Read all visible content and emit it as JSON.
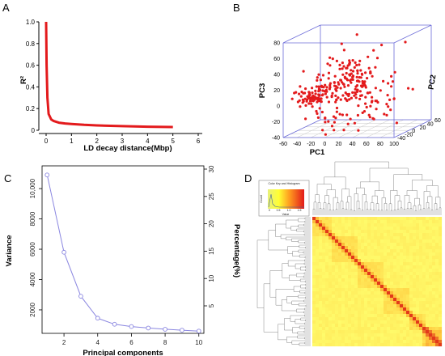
{
  "panel_letters": {
    "a": "A",
    "b": "B",
    "c": "C",
    "d": "D"
  },
  "colors": {
    "curve": "#e31a1c",
    "points": "#e31a1c",
    "cube": "#6b6bd8",
    "grid": "#c9c9c9",
    "scree": "#8a86e0",
    "heat_low": "#ffff66",
    "heat_high": "#e23a1a"
  },
  "chart_data": [
    {
      "id": "A",
      "type": "line",
      "xlabel": "LD decay distance(Mbp)",
      "ylabel": "R²",
      "xlim": [
        0,
        6
      ],
      "ylim": [
        0,
        1.0
      ],
      "xticks": [
        "0",
        "1",
        "2",
        "3",
        "4",
        "5",
        "6"
      ],
      "yticks": [
        "0",
        "0.2",
        "0.4",
        "0.6",
        "0.8",
        "1.0"
      ],
      "series": [
        {
          "x": [
            0,
            0.02,
            0.05,
            0.1,
            0.2,
            0.3,
            0.5,
            0.75,
            1,
            1.5,
            2,
            3,
            4,
            5
          ],
          "y": [
            1.0,
            0.6,
            0.3,
            0.15,
            0.1,
            0.085,
            0.07,
            0.063,
            0.058,
            0.05,
            0.045,
            0.038,
            0.033,
            0.03
          ]
        }
      ]
    },
    {
      "id": "B",
      "type": "scatter",
      "xlabel": "PC1",
      "ylabel": "PC2",
      "zlabel": "PC3",
      "xlim": [
        -60,
        100
      ],
      "ylim": [
        -40,
        60
      ],
      "zlim": [
        -40,
        80
      ],
      "xticks": [
        "-60",
        "-40",
        "-20",
        "0",
        "20",
        "40",
        "60",
        "80",
        "100"
      ],
      "yticks": [
        "-40",
        "-20",
        "0",
        "20",
        "40",
        "60"
      ],
      "zticks": [
        "-40",
        "-20",
        "0",
        "20",
        "40",
        "60",
        "80"
      ],
      "n_points": 300
    },
    {
      "id": "C",
      "type": "line",
      "xlabel": "Principal components",
      "ylabel": "Variance",
      "y2label": "Percentage(%)",
      "xlim": [
        0.7,
        10.3
      ],
      "ylim": [
        450,
        11500
      ],
      "xticks": [
        "2",
        "4",
        "6",
        "8",
        "10"
      ],
      "yticks": [
        "2000",
        "4000",
        "6000",
        "8000",
        "10,000"
      ],
      "y2ticks": [
        "5",
        "10",
        "15",
        "20",
        "25",
        "30"
      ],
      "series": [
        {
          "x": [
            1,
            2,
            3,
            4,
            5,
            6,
            7,
            8,
            9,
            10
          ],
          "y": [
            10900,
            5800,
            2900,
            1450,
            1050,
            900,
            800,
            720,
            660,
            600
          ]
        }
      ]
    },
    {
      "id": "D",
      "type": "heatmap",
      "key": {
        "title": "Color Key and Histogram",
        "xlabel": "Value",
        "ylabel": "Count",
        "ticks": [
          "0",
          "0.5",
          "1.0",
          "1.5"
        ]
      }
    }
  ]
}
